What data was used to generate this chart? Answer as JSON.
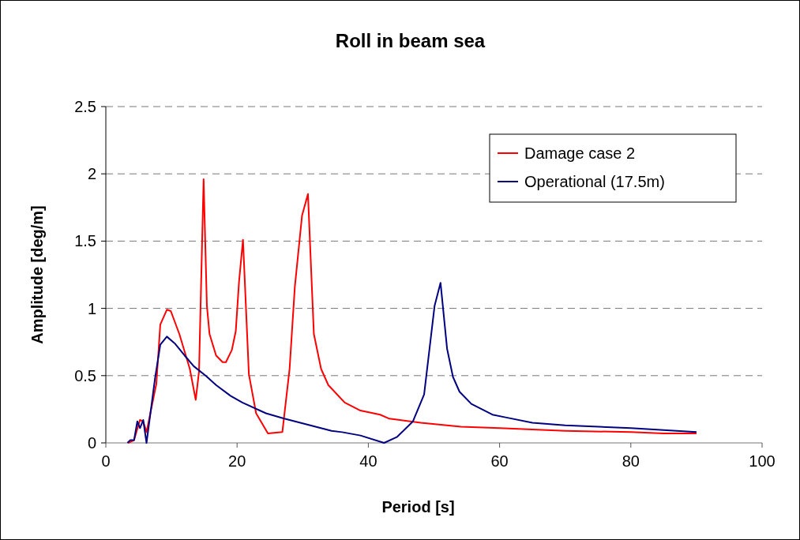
{
  "chart_data": {
    "type": "line",
    "title": "Roll in beam sea",
    "xlabel": "Period [s]",
    "ylabel": "Amplitude [deg/m]",
    "xlim": [
      0,
      100
    ],
    "xticks": [
      0,
      20,
      40,
      60,
      80,
      100
    ],
    "ylim": [
      0,
      2.5
    ],
    "yticks": [
      0,
      0.5,
      1,
      1.5,
      2,
      2.5
    ],
    "grid": "y",
    "legend": "top right",
    "marker": "none",
    "line_style": "solid",
    "series": [
      {
        "name": "Damage case 2",
        "color": "#ff0000",
        "x": [
          3.4,
          4.3,
          5.2,
          5.7,
          6.2,
          7.7,
          8.3,
          9.3,
          9.9,
          11.2,
          12.8,
          13.7,
          14.2,
          14.9,
          15.4,
          15.8,
          16.8,
          17.8,
          18.3,
          19.2,
          19.8,
          20.3,
          20.9,
          21.8,
          22.9,
          24.7,
          26.9,
          28.0,
          28.8,
          29.9,
          30.8,
          31.7,
          32.8,
          33.9,
          36.4,
          38.8,
          41.8,
          43.2,
          44.8,
          48.0,
          54.1,
          60,
          70,
          80,
          85,
          90
        ],
        "values": [
          0,
          0.02,
          0.17,
          0.16,
          0.08,
          0.44,
          0.88,
          0.99,
          0.98,
          0.81,
          0.55,
          0.32,
          0.53,
          1.96,
          1.02,
          0.81,
          0.65,
          0.6,
          0.6,
          0.69,
          0.83,
          1.2,
          1.51,
          0.51,
          0.22,
          0.07,
          0.08,
          0.55,
          1.16,
          1.69,
          1.85,
          0.81,
          0.55,
          0.43,
          0.3,
          0.24,
          0.21,
          0.18,
          0.17,
          0.15,
          0.12,
          0.11,
          0.09,
          0.08,
          0.07,
          0.07
        ]
      },
      {
        "name": "Operational (17.5m)",
        "color": "#000080",
        "x": [
          3.3,
          3.7,
          4.3,
          4.8,
          5.2,
          5.7,
          6.2,
          7.5,
          8.3,
          9.3,
          10.5,
          12.0,
          13.4,
          15.2,
          16.8,
          19.0,
          20.8,
          24.4,
          27.2,
          34.4,
          36.0,
          38.8,
          42.4,
          44.4,
          46.8,
          48.5,
          50.1,
          51.0,
          52.0,
          52.9,
          53.9,
          55.7,
          58.9,
          60.9,
          65,
          70,
          80,
          90
        ],
        "values": [
          0,
          0.02,
          0.02,
          0.16,
          0.11,
          0.17,
          0,
          0.48,
          0.73,
          0.79,
          0.74,
          0.65,
          0.57,
          0.5,
          0.43,
          0.35,
          0.3,
          0.22,
          0.18,
          0.09,
          0.08,
          0.055,
          0,
          0.045,
          0.16,
          0.36,
          1.02,
          1.19,
          0.7,
          0.49,
          0.38,
          0.29,
          0.21,
          0.19,
          0.15,
          0.13,
          0.11,
          0.08
        ]
      }
    ]
  }
}
